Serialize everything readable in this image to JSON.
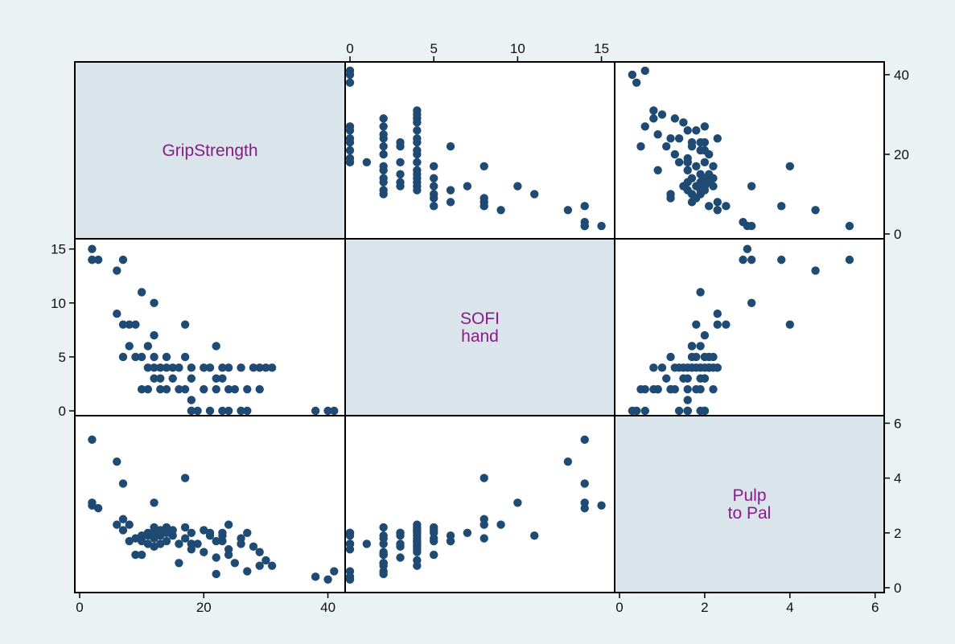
{
  "chart_data": {
    "type": "scatter",
    "subtype": "scatter-matrix",
    "variables": [
      {
        "key": "grip",
        "label_lines": [
          "GripStrength"
        ],
        "range": [
          0,
          42
        ],
        "ticks": [
          0,
          20,
          40
        ]
      },
      {
        "key": "sofi",
        "label_lines": [
          "SOFI",
          "hand"
        ],
        "range": [
          0,
          15.5
        ],
        "ticks": [
          0,
          5,
          10,
          15
        ]
      },
      {
        "key": "pulp",
        "label_lines": [
          "Pulp",
          "to Pal"
        ],
        "range": [
          0,
          6.1
        ],
        "ticks": [
          0,
          2,
          4,
          6
        ]
      }
    ],
    "axis_placement": {
      "top": "sofi",
      "right_top": "grip",
      "left_middle": "sofi",
      "bottom_left": "grip",
      "bottom_right": "pulp",
      "right_bottom": "pulp"
    },
    "marker_color": "#1e4a73",
    "diagonal_fill": "#d9e5ea",
    "background": "#eaf2f3",
    "label_color": "#8a1a8a",
    "grid": false,
    "legend": "none",
    "observations": [
      [
        40,
        0,
        0.3
      ],
      [
        38,
        0,
        0.4
      ],
      [
        41,
        0,
        0.6
      ],
      [
        31,
        4,
        0.8
      ],
      [
        30,
        4,
        1
      ],
      [
        29,
        4,
        1.3
      ],
      [
        29,
        2,
        0.8
      ],
      [
        28,
        4,
        1.5
      ],
      [
        27,
        0,
        2
      ],
      [
        27,
        2,
        0.6
      ],
      [
        26,
        4,
        1.8
      ],
      [
        26,
        0,
        1.6
      ],
      [
        25,
        2,
        0.9
      ],
      [
        24,
        4,
        2.3
      ],
      [
        24,
        0,
        1.4
      ],
      [
        24,
        2,
        1.2
      ],
      [
        23,
        4,
        1.7
      ],
      [
        23,
        3,
        2
      ],
      [
        23,
        0,
        1.9
      ],
      [
        22,
        6,
        1.7
      ],
      [
        22,
        2,
        0.5
      ],
      [
        22,
        3,
        1.1
      ],
      [
        21,
        4,
        1.9
      ],
      [
        21,
        0,
        2
      ],
      [
        20,
        4,
        2.1
      ],
      [
        20,
        2,
        1.3
      ],
      [
        19,
        0,
        1.6
      ],
      [
        18,
        4,
        1.4
      ],
      [
        18,
        3,
        2
      ],
      [
        18,
        0,
        1.6
      ],
      [
        18,
        1,
        1.6
      ],
      [
        17,
        8,
        4
      ],
      [
        17,
        5,
        2.2
      ],
      [
        17,
        2,
        1.8
      ],
      [
        16,
        4,
        1.6
      ],
      [
        16,
        2,
        0.9
      ],
      [
        15,
        4,
        2.1
      ],
      [
        15,
        3,
        1.9
      ],
      [
        14,
        4,
        1.7
      ],
      [
        14,
        2,
        2.2
      ],
      [
        14,
        5,
        2
      ],
      [
        13,
        3,
        1.6
      ],
      [
        13,
        4,
        2.1
      ],
      [
        13,
        2,
        1.9
      ],
      [
        12,
        5,
        1.8
      ],
      [
        12,
        4,
        2.2
      ],
      [
        12,
        3,
        1.5
      ],
      [
        12,
        7,
        2
      ],
      [
        12,
        10,
        3.1
      ],
      [
        11,
        6,
        1.9
      ],
      [
        11,
        4,
        2
      ],
      [
        11,
        2,
        1.6
      ],
      [
        10,
        11,
        1.9
      ],
      [
        10,
        5,
        1.7
      ],
      [
        10,
        2,
        1.2
      ],
      [
        9,
        8,
        1.8
      ],
      [
        9,
        5,
        1.2
      ],
      [
        8,
        8,
        2.3
      ],
      [
        8,
        6,
        1.7
      ],
      [
        7,
        8,
        2.5
      ],
      [
        7,
        5,
        2.1
      ],
      [
        7,
        14,
        3.8
      ],
      [
        6,
        13,
        4.6
      ],
      [
        6,
        9,
        2.3
      ],
      [
        3,
        14,
        2.9
      ],
      [
        2,
        14,
        5.4
      ],
      [
        2,
        15,
        3
      ],
      [
        2,
        14,
        3.1
      ]
    ]
  }
}
